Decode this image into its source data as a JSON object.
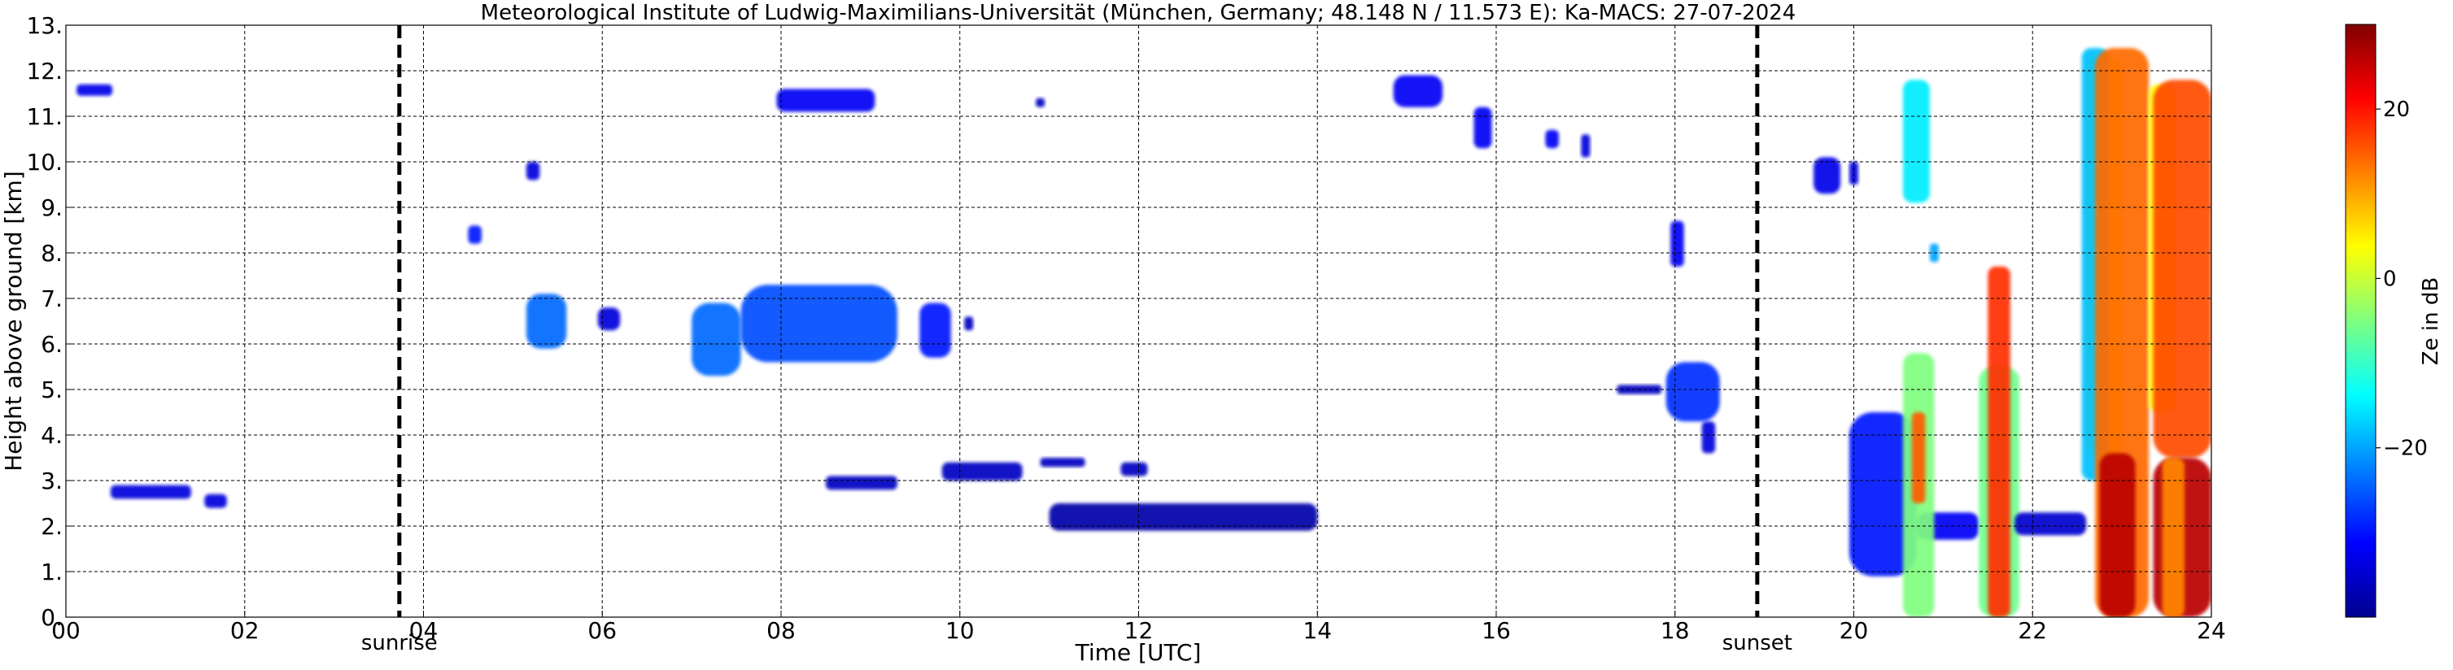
{
  "chart_data": {
    "type": "heatmap",
    "title": "Meteorological Institute of Ludwig-Maximilians-Universität (München, Germany; 48.148 N / 11.573 E):    Ka-MACS: 27-07-2024",
    "xlabel": "Time [UTC]",
    "ylabel": "Height above ground [km]",
    "xlim": [
      0,
      24
    ],
    "ylim": [
      0,
      13
    ],
    "xticks": [
      {
        "value": 0,
        "label": "00"
      },
      {
        "value": 2,
        "label": "02"
      },
      {
        "value": 4,
        "label": "04"
      },
      {
        "value": 6,
        "label": "06"
      },
      {
        "value": 8,
        "label": "08"
      },
      {
        "value": 10,
        "label": "10"
      },
      {
        "value": 12,
        "label": "12"
      },
      {
        "value": 14,
        "label": "14"
      },
      {
        "value": 16,
        "label": "16"
      },
      {
        "value": 18,
        "label": "18"
      },
      {
        "value": 20,
        "label": "20"
      },
      {
        "value": 22,
        "label": "22"
      },
      {
        "value": 24,
        "label": "24"
      }
    ],
    "yticks": [
      {
        "value": 0,
        "label": "0."
      },
      {
        "value": 1,
        "label": "1."
      },
      {
        "value": 2,
        "label": "2."
      },
      {
        "value": 3,
        "label": "3."
      },
      {
        "value": 4,
        "label": "4."
      },
      {
        "value": 5,
        "label": "5."
      },
      {
        "value": 6,
        "label": "6."
      },
      {
        "value": 7,
        "label": "7."
      },
      {
        "value": 8,
        "label": "8."
      },
      {
        "value": 9,
        "label": "9."
      },
      {
        "value": 10,
        "label": "10."
      },
      {
        "value": 11,
        "label": "11."
      },
      {
        "value": 12,
        "label": "12."
      },
      {
        "value": 13,
        "label": "13."
      }
    ],
    "grid": true,
    "markers": [
      {
        "name": "sunrise",
        "time": 3.73
      },
      {
        "name": "sunset",
        "time": 18.92
      }
    ],
    "colorbar": {
      "label": "Ze in dB",
      "range": [
        -40,
        30
      ],
      "ticks": [
        {
          "value": 20,
          "label": "20"
        },
        {
          "value": 0,
          "label": "0"
        },
        {
          "value": -20,
          "label": "−20"
        }
      ],
      "colormap": "jet"
    },
    "echoes": [
      {
        "t0": 0.12,
        "t1": 0.52,
        "h0": 11.45,
        "h1": 11.7,
        "ze": -33
      },
      {
        "t0": 0.5,
        "t1": 1.4,
        "h0": 2.6,
        "h1": 2.9,
        "ze": -34
      },
      {
        "t0": 1.55,
        "t1": 1.8,
        "h0": 2.4,
        "h1": 2.7,
        "ze": -34
      },
      {
        "t0": 4.5,
        "t1": 4.65,
        "h0": 8.2,
        "h1": 8.6,
        "ze": -30
      },
      {
        "t0": 5.15,
        "t1": 5.3,
        "h0": 9.6,
        "h1": 10.0,
        "ze": -34
      },
      {
        "t0": 5.15,
        "t1": 5.6,
        "h0": 5.9,
        "h1": 7.1,
        "ze": -24
      },
      {
        "t0": 5.95,
        "t1": 6.2,
        "h0": 6.3,
        "h1": 6.8,
        "ze": -34
      },
      {
        "t0": 7.0,
        "t1": 7.55,
        "h0": 5.3,
        "h1": 6.9,
        "ze": -24
      },
      {
        "t0": 7.55,
        "t1": 9.3,
        "h0": 5.6,
        "h1": 7.3,
        "ze": -26
      },
      {
        "t0": 9.55,
        "t1": 9.9,
        "h0": 5.7,
        "h1": 6.9,
        "ze": -30
      },
      {
        "t0": 10.05,
        "t1": 10.15,
        "h0": 6.3,
        "h1": 6.6,
        "ze": -36
      },
      {
        "t0": 7.95,
        "t1": 9.05,
        "h0": 11.1,
        "h1": 11.6,
        "ze": -32
      },
      {
        "t0": 10.85,
        "t1": 10.95,
        "h0": 11.2,
        "h1": 11.4,
        "ze": -36
      },
      {
        "t0": 14.85,
        "t1": 15.4,
        "h0": 11.2,
        "h1": 11.9,
        "ze": -32
      },
      {
        "t0": 15.75,
        "t1": 15.95,
        "h0": 10.3,
        "h1": 11.2,
        "ze": -32
      },
      {
        "t0": 16.55,
        "t1": 16.7,
        "h0": 10.3,
        "h1": 10.7,
        "ze": -32
      },
      {
        "t0": 16.95,
        "t1": 17.05,
        "h0": 10.1,
        "h1": 10.6,
        "ze": -34
      },
      {
        "t0": 17.95,
        "t1": 18.1,
        "h0": 7.7,
        "h1": 8.7,
        "ze": -32
      },
      {
        "t0": 17.9,
        "t1": 18.5,
        "h0": 4.3,
        "h1": 5.6,
        "ze": -28
      },
      {
        "t0": 17.35,
        "t1": 17.85,
        "h0": 4.9,
        "h1": 5.1,
        "ze": -36
      },
      {
        "t0": 18.3,
        "t1": 18.45,
        "h0": 3.6,
        "h1": 4.3,
        "ze": -34
      },
      {
        "t0": 8.5,
        "t1": 9.3,
        "h0": 2.8,
        "h1": 3.1,
        "ze": -36
      },
      {
        "t0": 9.8,
        "t1": 10.7,
        "h0": 3.0,
        "h1": 3.4,
        "ze": -36
      },
      {
        "t0": 10.9,
        "t1": 11.4,
        "h0": 3.3,
        "h1": 3.5,
        "ze": -36
      },
      {
        "t0": 11.8,
        "t1": 12.1,
        "h0": 3.1,
        "h1": 3.4,
        "ze": -36
      },
      {
        "t0": 11.0,
        "t1": 14.0,
        "h0": 1.9,
        "h1": 2.5,
        "ze": -38
      },
      {
        "t0": 19.55,
        "t1": 19.85,
        "h0": 9.3,
        "h1": 10.1,
        "ze": -33
      },
      {
        "t0": 19.95,
        "t1": 20.05,
        "h0": 9.5,
        "h1": 10.0,
        "ze": -34
      },
      {
        "t0": 20.55,
        "t1": 20.85,
        "h0": 9.1,
        "h1": 11.8,
        "ze": -15
      },
      {
        "t0": 20.85,
        "t1": 20.95,
        "h0": 7.8,
        "h1": 8.2,
        "ze": -20
      },
      {
        "t0": 19.95,
        "t1": 20.7,
        "h0": 0.9,
        "h1": 4.5,
        "ze": -30
      },
      {
        "t0": 20.7,
        "t1": 21.4,
        "h0": 1.7,
        "h1": 2.3,
        "ze": -32
      },
      {
        "t0": 20.55,
        "t1": 20.9,
        "h0": 0.0,
        "h1": 5.8,
        "ze": -5
      },
      {
        "t0": 20.65,
        "t1": 20.8,
        "h0": 2.5,
        "h1": 4.5,
        "ze": 15
      },
      {
        "t0": 21.4,
        "t1": 21.85,
        "h0": 0.0,
        "h1": 5.5,
        "ze": -6
      },
      {
        "t0": 21.5,
        "t1": 21.75,
        "h0": 0.0,
        "h1": 7.7,
        "ze": 18
      },
      {
        "t0": 21.8,
        "t1": 22.6,
        "h0": 1.8,
        "h1": 2.3,
        "ze": -35
      },
      {
        "t0": 22.6,
        "t1": 23.0,
        "h0": 3.5,
        "h1": 12.3,
        "ze": 5
      },
      {
        "t0": 22.55,
        "t1": 22.85,
        "h0": 3.0,
        "h1": 12.5,
        "ze": -18
      },
      {
        "t0": 22.7,
        "t1": 23.3,
        "h0": 0.0,
        "h1": 12.5,
        "ze": 14
      },
      {
        "t0": 22.75,
        "t1": 23.15,
        "h0": 0.0,
        "h1": 3.6,
        "ze": 26
      },
      {
        "t0": 23.3,
        "t1": 23.6,
        "h0": 4.5,
        "h1": 11.7,
        "ze": 4
      },
      {
        "t0": 23.35,
        "t1": 24.0,
        "h0": 3.5,
        "h1": 11.8,
        "ze": 16
      },
      {
        "t0": 23.35,
        "t1": 24.0,
        "h0": 0.0,
        "h1": 3.5,
        "ze": 26
      },
      {
        "t0": 23.45,
        "t1": 23.7,
        "h0": 0.0,
        "h1": 3.5,
        "ze": 12
      }
    ]
  }
}
